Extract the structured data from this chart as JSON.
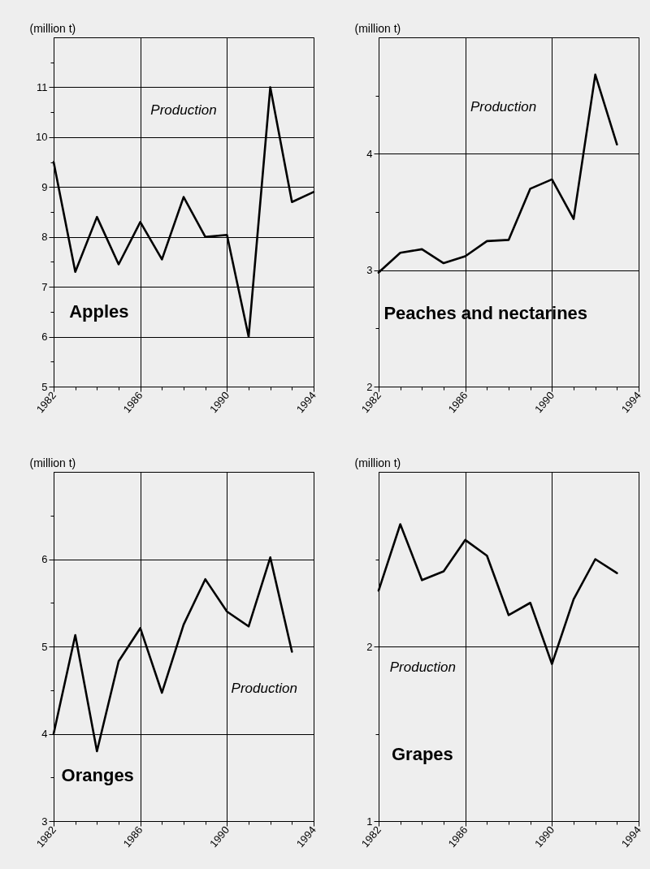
{
  "chart_data": [
    {
      "type": "line",
      "title": "Apples",
      "ylabel": "(million t)",
      "annotations": [
        "Production"
      ],
      "x": [
        1982,
        1983,
        1984,
        1985,
        1986,
        1987,
        1988,
        1989,
        1990,
        1991,
        1992,
        1993,
        1994
      ],
      "series": [
        {
          "color": "#000000",
          "values": [
            9.5,
            7.3,
            8.4,
            7.45,
            8.3,
            7.55,
            8.8,
            8.0,
            8.04,
            6.0,
            11.0,
            8.7,
            8.9
          ]
        }
      ],
      "xlim": [
        1982,
        1994
      ],
      "ylim": [
        5,
        12
      ],
      "xticks": [
        1982,
        {
          "value": 1983,
          "label": null
        },
        {
          "value": 1984,
          "label": null
        },
        {
          "value": 1985,
          "label": null
        },
        1986,
        {
          "value": 1987,
          "label": null
        },
        {
          "value": 1988,
          "label": null
        },
        {
          "value": 1989,
          "label": null
        },
        1990,
        {
          "value": 1991,
          "label": null
        },
        {
          "value": 1992,
          "label": null
        },
        {
          "value": 1993,
          "label": null
        },
        1994
      ],
      "yticks": [
        5,
        {
          "value": 5.5,
          "label": null
        },
        6,
        {
          "value": 6.5,
          "label": null
        },
        7,
        {
          "value": 7.5,
          "label": null
        },
        8,
        {
          "value": 8.5,
          "label": null
        },
        9,
        {
          "value": 9.5,
          "label": null
        },
        10,
        {
          "value": 10.5,
          "label": null
        },
        11,
        {
          "value": 11.5,
          "label": null
        }
      ],
      "grid": true
    },
    {
      "type": "line",
      "title": "Peaches and nectarines",
      "ylabel": "(million t)",
      "annotations": [
        "Production"
      ],
      "x": [
        1982,
        1983,
        1984,
        1985,
        1986,
        1987,
        1988,
        1989,
        1990,
        1991,
        1992,
        1993
      ],
      "series": [
        {
          "color": "#000000",
          "values": [
            2.98,
            3.15,
            3.18,
            3.06,
            3.12,
            3.25,
            3.26,
            3.7,
            3.78,
            3.44,
            4.68,
            4.08
          ]
        }
      ],
      "xlim": [
        1982,
        1994
      ],
      "ylim": [
        2,
        5
      ],
      "xticks": [
        1982,
        {
          "value": 1983,
          "label": null
        },
        {
          "value": 1984,
          "label": null
        },
        {
          "value": 1985,
          "label": null
        },
        1986,
        {
          "value": 1987,
          "label": null
        },
        {
          "value": 1988,
          "label": null
        },
        {
          "value": 1989,
          "label": null
        },
        1990,
        {
          "value": 1991,
          "label": null
        },
        {
          "value": 1992,
          "label": null
        },
        {
          "value": 1993,
          "label": null
        },
        1994
      ],
      "yticks": [
        2,
        {
          "value": 2.5,
          "label": null
        },
        3,
        {
          "value": 3.5,
          "label": null
        },
        4,
        {
          "value": 4.5,
          "label": null
        }
      ],
      "grid": true
    },
    {
      "type": "line",
      "title": "Oranges",
      "ylabel": "(million t)",
      "annotations": [
        "Production"
      ],
      "x": [
        1982,
        1983,
        1984,
        1985,
        1986,
        1987,
        1988,
        1989,
        1990,
        1991,
        1992,
        1993
      ],
      "series": [
        {
          "color": "#000000",
          "values": [
            4.0,
            5.13,
            3.8,
            4.83,
            5.21,
            4.47,
            5.25,
            5.77,
            5.4,
            5.23,
            6.02,
            4.94
          ]
        }
      ],
      "xlim": [
        1982,
        1994
      ],
      "ylim": [
        3,
        7
      ],
      "xticks": [
        1982,
        {
          "value": 1983,
          "label": null
        },
        {
          "value": 1984,
          "label": null
        },
        {
          "value": 1985,
          "label": null
        },
        1986,
        {
          "value": 1987,
          "label": null
        },
        {
          "value": 1988,
          "label": null
        },
        {
          "value": 1989,
          "label": null
        },
        1990,
        {
          "value": 1991,
          "label": null
        },
        {
          "value": 1992,
          "label": null
        },
        {
          "value": 1993,
          "label": null
        },
        1994
      ],
      "yticks": [
        3,
        {
          "value": 3.5,
          "label": null
        },
        4,
        {
          "value": 4.5,
          "label": null
        },
        5,
        {
          "value": 5.5,
          "label": null
        },
        6,
        {
          "value": 6.5,
          "label": null
        }
      ],
      "grid": true
    },
    {
      "type": "line",
      "title": "Grapes",
      "ylabel": "(million t)",
      "annotations": [
        "Production"
      ],
      "x": [
        1982,
        1983,
        1984,
        1985,
        1986,
        1987,
        1988,
        1989,
        1990,
        1991,
        1992,
        1993
      ],
      "series": [
        {
          "color": "#000000",
          "values": [
            2.32,
            2.7,
            2.38,
            2.43,
            2.61,
            2.52,
            2.18,
            2.25,
            1.9,
            2.27,
            2.5,
            2.42
          ]
        }
      ],
      "xlim": [
        1982,
        1994
      ],
      "ylim": [
        1,
        3
      ],
      "xticks": [
        1982,
        {
          "value": 1983,
          "label": null
        },
        {
          "value": 1984,
          "label": null
        },
        {
          "value": 1985,
          "label": null
        },
        1986,
        {
          "value": 1987,
          "label": null
        },
        {
          "value": 1988,
          "label": null
        },
        {
          "value": 1989,
          "label": null
        },
        1990,
        {
          "value": 1991,
          "label": null
        },
        {
          "value": 1992,
          "label": null
        },
        {
          "value": 1993,
          "label": null
        },
        1994
      ],
      "yticks": [
        1,
        {
          "value": 1.5,
          "label": null
        },
        2,
        {
          "value": 2.5,
          "label": null
        }
      ],
      "grid": true
    }
  ]
}
